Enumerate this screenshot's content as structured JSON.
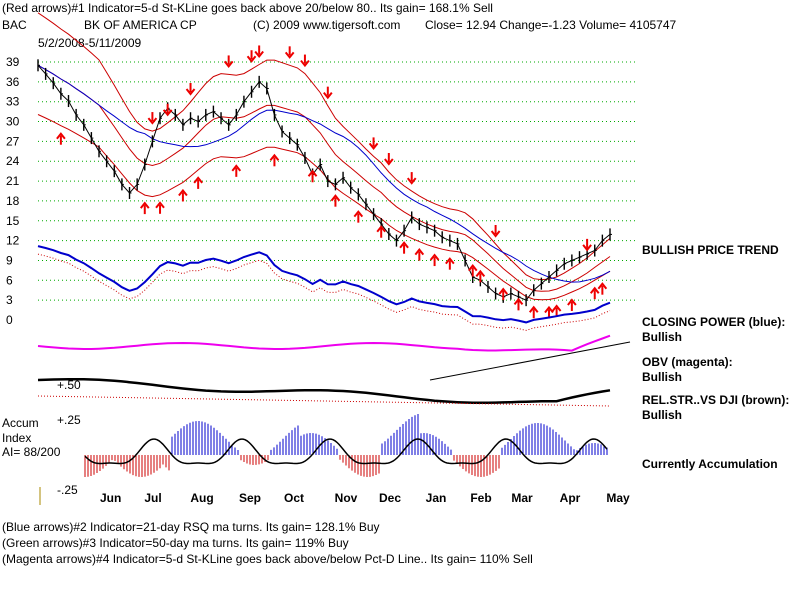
{
  "header": {
    "indicator1": "(Red arrows)#1 Indicator=5-d St-KLine goes back above 20/below 80.. Its gain= 168.1% Sell",
    "symbol": "BAC",
    "company": "BK OF AMERICA CP",
    "copyright": "(C) 2009 www.tigersoft.com",
    "quote": "Close=  12.94   Change=-1.23  Volume= 4105747",
    "date_range": "5/2/2008-5/11/2009"
  },
  "right_labels": {
    "trend": "BULLISH PRICE TREND",
    "cp_title": "CLOSING POWER (blue):",
    "cp_status": "Bullish",
    "obv_title": "OBV (magenta):",
    "obv_status": "Bullish",
    "rel_title": "REL.STR..VS DJI (brown):",
    "rel_status": "Bullish",
    "accum": "Currently Accumulation"
  },
  "accum_panel": {
    "title": "Accum",
    "subtitle": "Index",
    "ai": "AI= 88/200",
    "level_50": "+.50",
    "level_25": "+.25",
    "level_m25": "-.25"
  },
  "footer": {
    "indicator2": "(Blue arrows)#2 Indicator=21-day RSQ ma turns. Its gain= 128.1% Buy",
    "indicator3": "(Green arrows)#3 Indicator=50-day ma turns. Its gain= 119% Buy",
    "indicator4": "(Magenta arrows)#4 Indicator=5-d St-KLine goes back above/below Pct-D Line.. Its gain= 110% Sell"
  },
  "colors": {
    "price": "#000000",
    "bands": "#cc0000",
    "ma": "#0000cc",
    "closing_power": "#0000cc",
    "obv": "#ee00ee",
    "rel_strength": "#000000",
    "grid": "#00aa00",
    "arrows": "#ee0000",
    "accum_positive": "#0000cc",
    "accum_negative": "#cc0000"
  },
  "chart_data": {
    "type": "line",
    "y_tick_labels": [
      "39",
      "36",
      "33",
      "30",
      "27",
      "24",
      "21",
      "18",
      "15",
      "12",
      "9",
      "6",
      "3",
      "0"
    ],
    "ylim": [
      0,
      39
    ],
    "x_tick_labels": [
      "Jul",
      "Aug",
      "Sep",
      "Oct",
      "Nov",
      "Dec",
      "Jan",
      "Feb",
      "Mar",
      "Apr",
      "May"
    ],
    "x_axis_label": "Jun",
    "series": [
      {
        "key": "price",
        "values": [
          38.5,
          37.2,
          35.8,
          34.2,
          33.1,
          31.0,
          29.5,
          27.5,
          25.5,
          24.0,
          22.5,
          20.5,
          19.2,
          20.5,
          23.5,
          27.0,
          30.5,
          32.0,
          31.0,
          29.5,
          30.5,
          30.0,
          31.0,
          31.5,
          30.5,
          29.5,
          31.0,
          33.0,
          34.5,
          36.0,
          35.0,
          31.0,
          28.5,
          27.5,
          26.5,
          24.5,
          22.0,
          23.5,
          21.0,
          20.5,
          21.5,
          20.0,
          19.0,
          17.5,
          16.0,
          14.5,
          13.0,
          12.0,
          13.5,
          15.5,
          14.5,
          14.0,
          13.5,
          12.5,
          12.0,
          11.5,
          9.0,
          6.5,
          6.0,
          5.0,
          4.0,
          3.5,
          4.0,
          3.5,
          3.0,
          4.5,
          5.5,
          6.5,
          7.5,
          8.5,
          9.0,
          9.5,
          10.0,
          10.5,
          12.0,
          12.94
        ]
      },
      {
        "key": "upper_band",
        "values": [
          null
        ]
      },
      {
        "key": "lower_band",
        "values": [
          null
        ]
      },
      {
        "key": "ma50",
        "values": [
          null
        ]
      }
    ],
    "annotations": {
      "sell_arrows": 14,
      "buy_arrows": 25
    }
  }
}
